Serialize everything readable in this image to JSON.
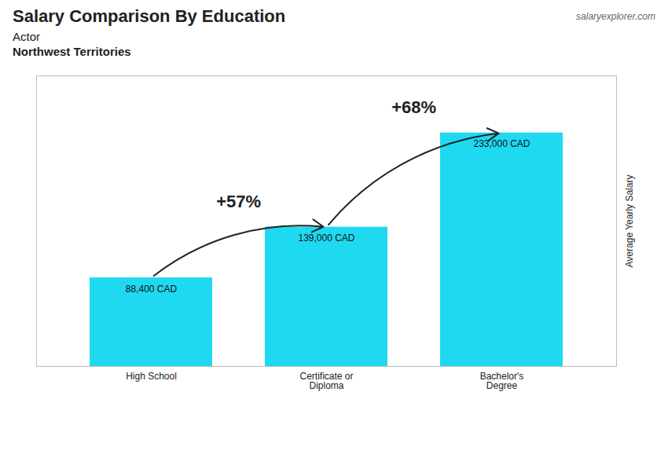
{
  "chart_data": {
    "type": "bar",
    "title": "Salary Comparison By Education",
    "subtitle": [
      "Actor",
      "Northwest Territories"
    ],
    "caption": "salaryexplorer.com",
    "categories": [
      "High School",
      "Certificate or\nDiploma",
      "Bachelor's\nDegree"
    ],
    "values": [
      88400,
      139000,
      233000
    ],
    "value_labels": [
      "88,400 CAD",
      "139,000 CAD",
      "233,000 CAD"
    ],
    "data_labels": true,
    "color": "#1ed9f0",
    "ylabel": "Average Yearly Salary",
    "ylim": [
      0,
      290000
    ],
    "tick_labels": "x",
    "annotations": [
      {
        "text": "+57%"
      },
      {
        "text": "+68%"
      }
    ]
  }
}
